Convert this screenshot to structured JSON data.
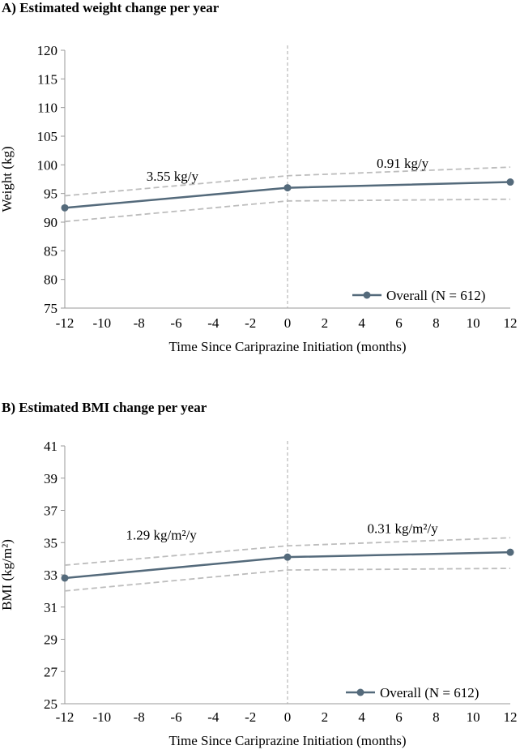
{
  "chart_data": [
    {
      "type": "line",
      "title": "A) Estimated weight change per year",
      "xlabel": "Time Since Cariprazine Initiation (months)",
      "ylabel": "Weight (kg)",
      "xlim": [
        -12,
        12
      ],
      "ylim": [
        75,
        120
      ],
      "x_ticks": [
        "-12",
        "-10",
        "-8",
        "-6",
        "-4",
        "-2",
        "0",
        "2",
        "4",
        "6",
        "8",
        "10",
        "12"
      ],
      "y_ticks": [
        "75",
        "80",
        "85",
        "90",
        "95",
        "100",
        "105",
        "110",
        "115",
        "120"
      ],
      "series": [
        {
          "name": "Overall (N = 612)",
          "x": [
            -12,
            0,
            12
          ],
          "values": [
            92.5,
            96.0,
            97.0
          ]
        }
      ],
      "ci_upper": {
        "x": [
          -12,
          0,
          12
        ],
        "values": [
          94.6,
          98.1,
          99.6
        ]
      },
      "ci_lower": {
        "x": [
          -12,
          0,
          12
        ],
        "values": [
          90.1,
          93.7,
          94.0
        ]
      },
      "vline_x": 0,
      "legend": "bottom-right",
      "annotations": [
        {
          "text": "3.55 kg/y",
          "x": -6.2,
          "y": 97.2
        },
        {
          "text": "0.91 kg/y",
          "x": 6.2,
          "y": 99.5
        }
      ],
      "colors": {
        "line": "#546a7b",
        "ci": "#bdbdbd",
        "vline": "#aaaaaa",
        "axis": "#999999"
      }
    },
    {
      "type": "line",
      "title": "B) Estimated BMI change per year",
      "xlabel": "Time Since Cariprazine Initiation (months)",
      "ylabel": "BMI (kg/m²)",
      "xlim": [
        -12,
        12
      ],
      "ylim": [
        25,
        41
      ],
      "x_ticks": [
        "-12",
        "-10",
        "-8",
        "-6",
        "-4",
        "-2",
        "0",
        "2",
        "4",
        "6",
        "8",
        "10",
        "12"
      ],
      "y_ticks": [
        "25",
        "27",
        "29",
        "31",
        "33",
        "35",
        "37",
        "39",
        "41"
      ],
      "series": [
        {
          "name": "Overall (N = 612)",
          "x": [
            -12,
            0,
            12
          ],
          "values": [
            32.8,
            34.1,
            34.4
          ]
        }
      ],
      "ci_upper": {
        "x": [
          -12,
          0,
          12
        ],
        "values": [
          33.6,
          34.8,
          35.3
        ]
      },
      "ci_lower": {
        "x": [
          -12,
          0,
          12
        ],
        "values": [
          32.0,
          33.3,
          33.4
        ]
      },
      "vline_x": 0,
      "legend": "bottom-right",
      "annotations": [
        {
          "text": "1.29 kg/m²/y",
          "x": -6.8,
          "y": 35.2
        },
        {
          "text": "0.31 kg/m²/y",
          "x": 6.2,
          "y": 35.6
        }
      ],
      "colors": {
        "line": "#546a7b",
        "ci": "#bdbdbd",
        "vline": "#aaaaaa",
        "axis": "#999999"
      }
    }
  ]
}
